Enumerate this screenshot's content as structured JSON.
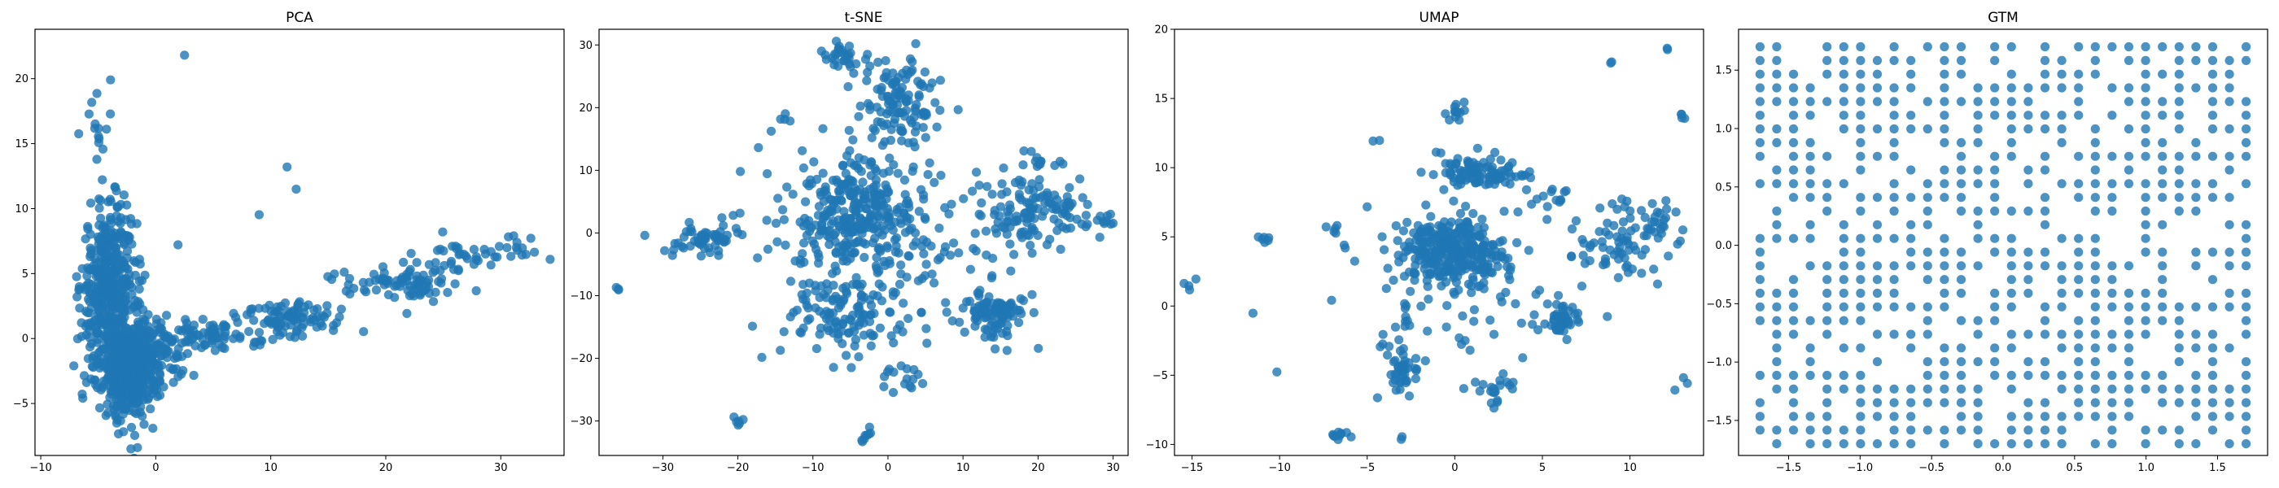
{
  "figure": {
    "marker_color": "#1f77b4"
  },
  "chart_data": [
    {
      "type": "scatter",
      "title": "PCA",
      "xlim": [
        -10.5,
        35.5
      ],
      "ylim": [
        -9.0,
        23.8
      ],
      "xticks": [
        -10,
        0,
        10,
        20,
        30
      ],
      "yticks": [
        -5,
        0,
        5,
        10,
        15,
        20
      ],
      "grid": false,
      "clusters": [
        {
          "x": -4.0,
          "y": 4.0,
          "sx": 1.2,
          "sy": 3.0,
          "n": 450
        },
        {
          "x": -2.2,
          "y": -2.5,
          "sx": 1.2,
          "sy": 2.0,
          "n": 380
        },
        {
          "x": -1.0,
          "y": -1.0,
          "sx": 2.0,
          "sy": 1.3,
          "n": 180
        },
        {
          "x": -5.0,
          "y": 16.0,
          "sx": 1.0,
          "sy": 1.5,
          "n": 14
        },
        {
          "x": 5.0,
          "y": 0.2,
          "sx": 2.0,
          "sy": 0.6,
          "n": 70
        },
        {
          "x": 12.0,
          "y": 1.6,
          "sx": 2.5,
          "sy": 0.7,
          "n": 90
        },
        {
          "x": 21.0,
          "y": 4.5,
          "sx": 3.0,
          "sy": 0.8,
          "n": 90
        },
        {
          "x": 29.0,
          "y": 6.8,
          "sx": 2.8,
          "sy": 0.6,
          "n": 40
        },
        {
          "x": 2.5,
          "y": 21.8,
          "sx": 0.05,
          "sy": 0.05,
          "n": 1
        },
        {
          "x": 11.5,
          "y": 13.2,
          "sx": 0.05,
          "sy": 0.05,
          "n": 1
        },
        {
          "x": 12.2,
          "y": 11.5,
          "sx": 0.05,
          "sy": 0.05,
          "n": 1
        },
        {
          "x": 9.0,
          "y": 9.5,
          "sx": 0.05,
          "sy": 0.05,
          "n": 1
        },
        {
          "x": 2.0,
          "y": 7.2,
          "sx": 0.05,
          "sy": 0.05,
          "n": 1
        },
        {
          "x": -5.0,
          "y": 16.2,
          "sx": 0.05,
          "sy": 0.05,
          "n": 1
        }
      ]
    },
    {
      "type": "scatter",
      "title": "t-SNE",
      "xlim": [
        -38.5,
        32.0
      ],
      "ylim": [
        -35.5,
        32.5
      ],
      "xticks": [
        -30,
        -20,
        -10,
        0,
        10,
        20,
        30
      ],
      "yticks": [
        -30,
        -20,
        -10,
        0,
        10,
        20,
        30
      ],
      "grid": false,
      "clusters": [
        {
          "x": -4.5,
          "y": 4.0,
          "sx": 4.0,
          "sy": 4.0,
          "n": 260
        },
        {
          "x": 1.5,
          "y": 21.0,
          "sx": 2.5,
          "sy": 4.0,
          "n": 120
        },
        {
          "x": -6.0,
          "y": 28.0,
          "sx": 1.5,
          "sy": 1.0,
          "n": 30
        },
        {
          "x": 20.0,
          "y": 3.5,
          "sx": 4.0,
          "sy": 3.0,
          "n": 120
        },
        {
          "x": 14.0,
          "y": -13.0,
          "sx": 2.0,
          "sy": 1.8,
          "n": 90
        },
        {
          "x": -24.0,
          "y": -0.5,
          "sx": 2.5,
          "sy": 1.5,
          "n": 60
        },
        {
          "x": -6.0,
          "y": -13.0,
          "sx": 3.5,
          "sy": 3.0,
          "n": 100
        },
        {
          "x": 0.0,
          "y": -5.0,
          "sx": 8.0,
          "sy": 8.0,
          "n": 160
        },
        {
          "x": 2.0,
          "y": -23.0,
          "sx": 1.5,
          "sy": 1.0,
          "n": 15
        },
        {
          "x": -3.0,
          "y": -32.0,
          "sx": 0.6,
          "sy": 0.8,
          "n": 8
        },
        {
          "x": -20.0,
          "y": -30.5,
          "sx": 0.4,
          "sy": 0.4,
          "n": 6
        },
        {
          "x": -36.0,
          "y": -9.2,
          "sx": 0.3,
          "sy": 0.3,
          "n": 3
        },
        {
          "x": 28.5,
          "y": 2.0,
          "sx": 1.0,
          "sy": 0.8,
          "n": 10
        },
        {
          "x": 21.0,
          "y": 11.5,
          "sx": 1.5,
          "sy": 0.8,
          "n": 12
        },
        {
          "x": -14.0,
          "y": 18.0,
          "sx": 0.8,
          "sy": 0.8,
          "n": 5
        }
      ]
    },
    {
      "type": "scatter",
      "title": "UMAP",
      "xlim": [
        -16.0,
        14.2
      ],
      "ylim": [
        -10.8,
        20.0
      ],
      "xticks": [
        -15,
        -10,
        -5,
        0,
        5,
        10
      ],
      "yticks": [
        -10,
        -5,
        0,
        5,
        10,
        15,
        20
      ],
      "grid": false,
      "clusters": [
        {
          "x": 0.0,
          "y": 4.0,
          "sx": 1.5,
          "sy": 1.2,
          "n": 300
        },
        {
          "x": 1.5,
          "y": 9.5,
          "sx": 1.3,
          "sy": 0.6,
          "n": 100
        },
        {
          "x": 0.0,
          "y": 14.0,
          "sx": 0.4,
          "sy": 0.4,
          "n": 12
        },
        {
          "x": 6.0,
          "y": -1.2,
          "sx": 0.5,
          "sy": 0.7,
          "n": 50
        },
        {
          "x": -3.0,
          "y": -4.5,
          "sx": 0.5,
          "sy": 1.0,
          "n": 40
        },
        {
          "x": 2.5,
          "y": -6.0,
          "sx": 0.6,
          "sy": 0.6,
          "n": 18
        },
        {
          "x": 9.5,
          "y": 4.5,
          "sx": 1.4,
          "sy": 1.6,
          "n": 80
        },
        {
          "x": 12.0,
          "y": 6.5,
          "sx": 0.4,
          "sy": 0.6,
          "n": 12
        },
        {
          "x": 0.0,
          "y": 1.0,
          "sx": 3.0,
          "sy": 3.0,
          "n": 80
        },
        {
          "x": -6.5,
          "y": -9.3,
          "sx": 0.4,
          "sy": 0.2,
          "n": 10
        },
        {
          "x": -15.0,
          "y": 1.5,
          "sx": 0.2,
          "sy": 0.3,
          "n": 4
        },
        {
          "x": -10.8,
          "y": 4.9,
          "sx": 0.3,
          "sy": 0.2,
          "n": 6
        },
        {
          "x": -7.0,
          "y": 5.5,
          "sx": 0.3,
          "sy": 0.3,
          "n": 5
        },
        {
          "x": 13.0,
          "y": 13.5,
          "sx": 0.2,
          "sy": 0.3,
          "n": 4
        },
        {
          "x": 13.0,
          "y": -5.5,
          "sx": 0.2,
          "sy": 0.2,
          "n": 3
        },
        {
          "x": 12.0,
          "y": 18.6,
          "sx": 0.1,
          "sy": 0.1,
          "n": 2
        },
        {
          "x": 8.8,
          "y": 17.6,
          "sx": 0.1,
          "sy": 0.1,
          "n": 2
        },
        {
          "x": -3.0,
          "y": -9.6,
          "sx": 0.1,
          "sy": 0.1,
          "n": 2
        },
        {
          "x": -11.5,
          "y": -0.6,
          "sx": 0.1,
          "sy": 0.1,
          "n": 1
        },
        {
          "x": -4.5,
          "y": 12.0,
          "sx": 0.2,
          "sy": 0.2,
          "n": 2
        },
        {
          "x": 5.5,
          "y": 7.5,
          "sx": 0.8,
          "sy": 0.8,
          "n": 15
        }
      ]
    },
    {
      "type": "scatter",
      "title": "GTM",
      "xlim": [
        -1.85,
        1.85
      ],
      "ylim": [
        -1.8,
        1.85
      ],
      "xticks": [
        -1.5,
        -1.0,
        -0.5,
        0.0,
        0.5,
        1.0,
        1.5
      ],
      "yticks": [
        -1.5,
        -1.0,
        -0.5,
        0.0,
        0.5,
        1.0,
        1.5
      ],
      "grid": false,
      "lattice_range": [
        -1.7,
        1.7
      ],
      "lattice_size": 30,
      "occupied_cells": 620
    }
  ]
}
